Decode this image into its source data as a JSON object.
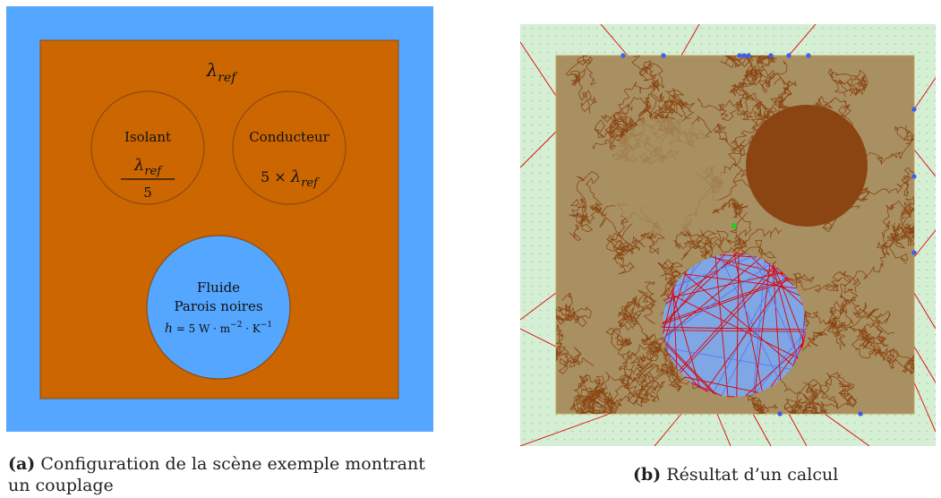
{
  "figure_a": {
    "lambda_ref": "λref",
    "isolant": {
      "label": "Isolant",
      "numerator": "λref",
      "denominator": "5"
    },
    "conducteur": {
      "label": "Conducteur",
      "formula": "5 × λref"
    },
    "fluide": {
      "label": "Fluide",
      "sublabel": "Parois noires",
      "formula": "h = 5 W · m−2 · K−1"
    },
    "colors": {
      "background": "#55a6ff",
      "solid": "#cc6600",
      "circle_stroke": "#8b4a14",
      "fluid": "#55a6ff"
    }
  },
  "figure_b": {
    "colors": {
      "background": "#d5efd4",
      "solid": "#a89062",
      "paths": "#8b4513",
      "rays": "#e00000",
      "fluid": "#7fa7e6",
      "dots": "#3c5ee8",
      "source": "#22cc22"
    }
  },
  "captions": {
    "a": {
      "tag": "(a)",
      "text": "Configuration de la scène exemple montrant un couplage"
    },
    "b": {
      "tag": "(b)",
      "text": "Résultat d’un calcul"
    }
  }
}
